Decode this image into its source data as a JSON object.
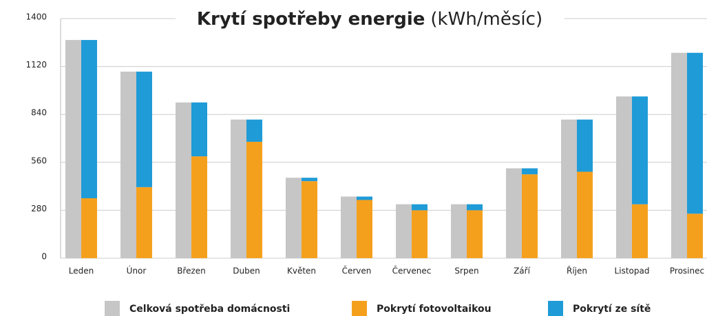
{
  "chart_data": {
    "type": "bar",
    "title": "Krytí spotřeby energie",
    "subtitle": "(kWh/měsíc)",
    "categories": [
      "Leden",
      "Únor",
      "Březen",
      "Duben",
      "Květen",
      "Červen",
      "Červenec",
      "Srpen",
      "Září",
      "Říjen",
      "Listopad",
      "Prosinec"
    ],
    "series": [
      {
        "name": "Celková spotřeba domácnosti",
        "color": "#c6c6c6",
        "values": [
          1275,
          1090,
          910,
          810,
          470,
          360,
          315,
          315,
          525,
          810,
          945,
          1200
        ]
      },
      {
        "name": "Pokrytí fotovoltaikou",
        "color": "#f5a01d",
        "values": [
          350,
          415,
          595,
          680,
          450,
          340,
          280,
          280,
          490,
          505,
          315,
          260
        ]
      },
      {
        "name": "Pokrytí ze sítě",
        "color": "#1f9bd7",
        "values": [
          925,
          675,
          315,
          130,
          20,
          20,
          35,
          35,
          35,
          305,
          630,
          940
        ]
      }
    ],
    "ylim": [
      0,
      1400
    ],
    "yticks": [
      0,
      280,
      560,
      840,
      1120,
      1400
    ],
    "grid": true
  }
}
